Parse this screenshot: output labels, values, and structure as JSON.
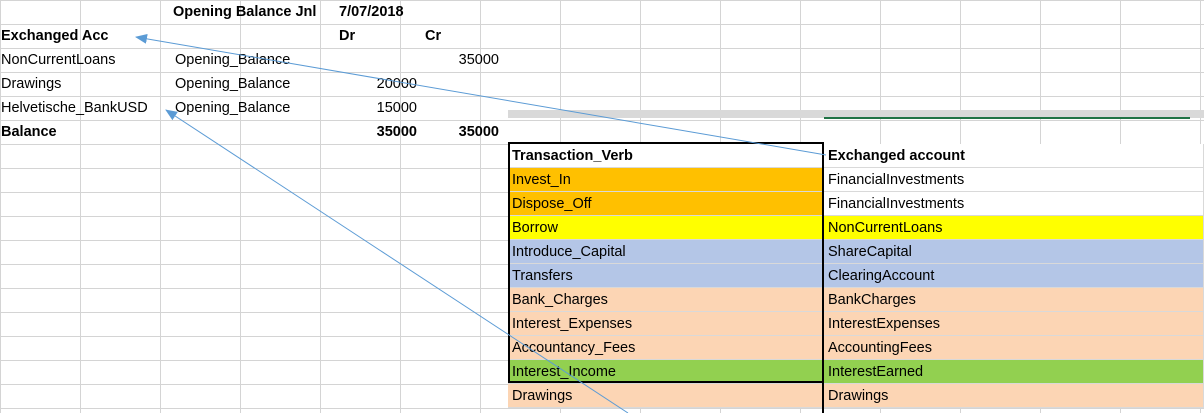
{
  "top_sheet": {
    "header": {
      "journal_label": "Opening Balance Jnl",
      "date": "7/07/2018"
    },
    "columns_row": {
      "account_heading": "Exchanged Acc",
      "dr_label": "Dr",
      "cr_label": "Cr"
    },
    "rows": [
      {
        "account": "NonCurrentLoans",
        "description": "Opening_Balance",
        "dr": "",
        "cr": "35000"
      },
      {
        "account": "Drawings",
        "description": "Opening_Balance",
        "dr": "20000",
        "cr": ""
      },
      {
        "account": "Helvetische_BankUSD",
        "description": "Opening_Balance",
        "dr": "15000",
        "cr": ""
      }
    ],
    "balance_row": {
      "label": "Balance",
      "dr_total": "35000",
      "cr_total": "35000"
    }
  },
  "lookup_table": {
    "headers": {
      "verb": "Transaction_Verb",
      "account": "Exchanged account"
    },
    "rows": [
      {
        "verb": "Invest_In",
        "account": "FinancialInvestments",
        "verb_color": "#ffc000",
        "account_color": "#ffffff"
      },
      {
        "verb": "Dispose_Off",
        "account": "FinancialInvestments",
        "verb_color": "#ffc000",
        "account_color": "#ffffff"
      },
      {
        "verb": "Borrow",
        "account": "NonCurrentLoans",
        "verb_color": "#ffff00",
        "account_color": "#ffff00"
      },
      {
        "verb": "Introduce_Capital",
        "account": "ShareCapital",
        "verb_color": "#b4c6e7",
        "account_color": "#b4c6e7"
      },
      {
        "verb": "Transfers",
        "account": "ClearingAccount",
        "verb_color": "#b4c6e7",
        "account_color": "#b4c6e7"
      },
      {
        "verb": "Bank_Charges",
        "account": "BankCharges",
        "verb_color": "#fcd5b4",
        "account_color": "#fcd5b4"
      },
      {
        "verb": "Interest_Expenses",
        "account": "InterestExpenses",
        "verb_color": "#fcd5b4",
        "account_color": "#fcd5b4"
      },
      {
        "verb": "Accountancy_Fees",
        "account": "AccountingFees",
        "verb_color": "#fcd5b4",
        "account_color": "#fcd5b4"
      },
      {
        "verb": "Interest_Income",
        "account": "InterestEarned",
        "verb_color": "#92d050",
        "account_color": "#92d050"
      },
      {
        "verb": "Drawings",
        "account": "Drawings",
        "verb_color": "#fcd5b4",
        "account_color": "#fcd5b4"
      }
    ]
  },
  "colors": {
    "arrow": "#5b9bd5",
    "gridline": "#d4d4d4",
    "selection_green": "#217346"
  }
}
